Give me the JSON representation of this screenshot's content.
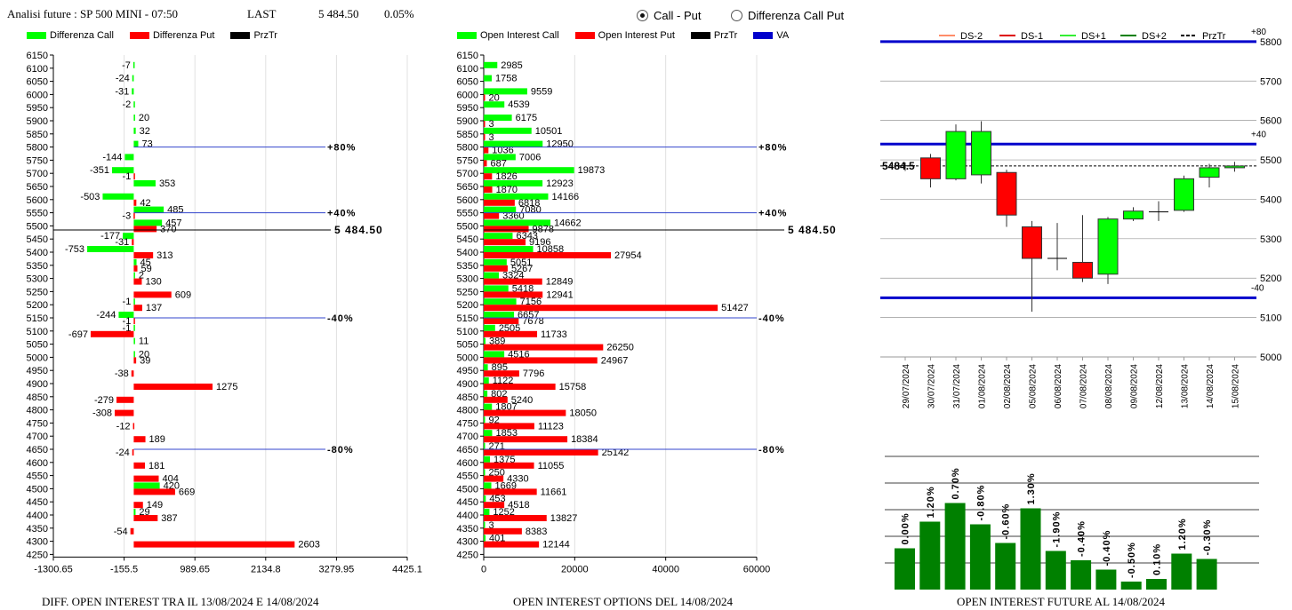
{
  "header": {
    "title": "Analisi future : SP 500 MINI - 07:50",
    "last_label": "LAST",
    "last_value": "5 484.50",
    "change": "0.05%"
  },
  "mode": {
    "options": [
      "Call - Put",
      "Differenza Call Put"
    ],
    "selected": "Call - Put"
  },
  "colors": {
    "call": "#00ff00",
    "put": "#ff0000",
    "prztr": "#000000",
    "va": "#0000cc",
    "bar": "#008000"
  },
  "legend_diff": [
    "Differenza Call",
    "Differenza Put",
    "PrzTr"
  ],
  "legend_oi": [
    "Open Interest Call",
    "Open Interest Put",
    "PrzTr",
    "VA"
  ],
  "legend_candle": [
    "DS-2",
    "DS-1",
    "DS+1",
    "DS+2",
    "PrzTr"
  ],
  "footer": {
    "diff": "DIFF. OPEN INTEREST TRA IL 13/08/2024 E 14/08/2024",
    "oi": "OPEN INTEREST OPTIONS DEL 14/08/2024",
    "fut": "OPEN INTEREST FUTURE AL 14/08/2024"
  },
  "chart_data": [
    {
      "type": "bar",
      "orientation": "horizontal",
      "strikes": [
        6150,
        6100,
        6050,
        6000,
        5950,
        5900,
        5850,
        5800,
        5750,
        5700,
        5650,
        5600,
        5550,
        5500,
        5450,
        5400,
        5350,
        5300,
        5250,
        5200,
        5150,
        5100,
        5050,
        5000,
        4950,
        4900,
        4850,
        4800,
        4750,
        4700,
        4650,
        4600,
        4550,
        4500,
        4450,
        4400,
        4350,
        4300,
        4250
      ],
      "series": [
        {
          "name": "Differenza Call",
          "values": [
            null,
            -7,
            -24,
            -31,
            -2,
            20,
            32,
            73,
            -144,
            -351,
            353,
            -503,
            485,
            457,
            -177,
            -753,
            45,
            2,
            null,
            -1,
            -244,
            -1,
            11,
            20,
            null,
            null,
            null,
            null,
            null,
            null,
            null,
            null,
            null,
            420,
            null,
            29,
            null,
            null,
            null
          ]
        },
        {
          "name": "Differenza Put",
          "values": [
            null,
            null,
            null,
            null,
            null,
            null,
            null,
            null,
            null,
            -1,
            null,
            42,
            -3,
            370,
            -31,
            313,
            59,
            130,
            609,
            137,
            -1,
            -697,
            null,
            39,
            -38,
            1275,
            -279,
            -308,
            -12,
            189,
            -24,
            181,
            404,
            669,
            149,
            387,
            -54,
            2603,
            null
          ]
        }
      ],
      "hlines": [
        {
          "strike": 5800,
          "label": "+80%"
        },
        {
          "strike": 5550,
          "label": "+40%"
        },
        {
          "strike": 5484.5,
          "label": "5 484.50",
          "prztr": true
        },
        {
          "strike": 5150,
          "label": "-40%"
        },
        {
          "strike": 4650,
          "label": "-80%"
        }
      ],
      "xlim": [
        -1300.65,
        4425.1
      ],
      "xticks": [
        "-1300.65",
        "-155.5",
        "989.65",
        "2134.8",
        "3279.95",
        "4425.1"
      ],
      "xlabel": "DIFF. OPEN INTEREST TRA IL 13/08/2024 E 14/08/2024"
    },
    {
      "type": "bar",
      "orientation": "horizontal",
      "strikes": [
        6150,
        6100,
        6050,
        6000,
        5950,
        5900,
        5850,
        5800,
        5750,
        5700,
        5650,
        5600,
        5550,
        5500,
        5450,
        5400,
        5350,
        5300,
        5250,
        5200,
        5150,
        5100,
        5050,
        5000,
        4950,
        4900,
        4850,
        4800,
        4750,
        4700,
        4650,
        4600,
        4550,
        4500,
        4450,
        4400,
        4350,
        4300,
        4250
      ],
      "series": [
        {
          "name": "Open Interest Call",
          "values": [
            null,
            2985,
            1758,
            9559,
            4539,
            6175,
            10501,
            12950,
            7006,
            19873,
            12923,
            14166,
            7080,
            14662,
            6343,
            10858,
            5051,
            3324,
            5418,
            7156,
            6657,
            2505,
            389,
            4516,
            895,
            1122,
            802,
            1807,
            92,
            1853,
            271,
            1375,
            250,
            1669,
            453,
            1252,
            3,
            401,
            null
          ]
        },
        {
          "name": "Open Interest Put",
          "values": [
            null,
            null,
            null,
            20,
            null,
            3,
            3,
            1036,
            687,
            1826,
            1870,
            6818,
            3360,
            9878,
            9196,
            27954,
            5267,
            12849,
            12941,
            51427,
            7678,
            11733,
            26250,
            24967,
            7796,
            15758,
            5240,
            18050,
            11123,
            18384,
            25142,
            11055,
            4330,
            11661,
            4518,
            13827,
            8383,
            12144,
            null
          ]
        }
      ],
      "hlines": [
        {
          "strike": 5800,
          "label": "+80%"
        },
        {
          "strike": 5550,
          "label": "+40%"
        },
        {
          "strike": 5484.5,
          "label": "5 484.50",
          "prztr": true
        },
        {
          "strike": 5150,
          "label": "-40%"
        },
        {
          "strike": 4650,
          "label": "-80%"
        }
      ],
      "xlim": [
        0,
        60000
      ],
      "xticks": [
        "0",
        "20000",
        "40000",
        "60000"
      ],
      "xlabel": "OPEN INTEREST OPTIONS DEL 14/08/2024"
    },
    {
      "type": "candlestick",
      "dates": [
        "29/07/2024",
        "30/07/2024",
        "31/07/2024",
        "01/08/2024",
        "02/08/2024",
        "05/08/2024",
        "06/08/2024",
        "07/08/2024",
        "08/08/2024",
        "09/08/2024",
        "12/08/2024",
        "13/08/2024",
        "14/08/2024",
        "15/08/2024"
      ],
      "ohlc": [
        [
          5485,
          5493,
          5472,
          5485
        ],
        [
          5505,
          5515,
          5430,
          5452
        ],
        [
          5452,
          5590,
          5448,
          5572
        ],
        [
          5462,
          5598,
          5440,
          5572
        ],
        [
          5468,
          5475,
          5330,
          5360
        ],
        [
          5330,
          5345,
          5115,
          5250
        ],
        [
          5250,
          5340,
          5220,
          5250
        ],
        [
          5240,
          5360,
          5190,
          5200
        ],
        [
          5210,
          5355,
          5185,
          5350
        ],
        [
          5350,
          5380,
          5345,
          5370
        ],
        [
          5368,
          5395,
          5345,
          5368
        ],
        [
          5372,
          5460,
          5368,
          5452
        ],
        [
          5456,
          5490,
          5430,
          5480
        ],
        [
          5480,
          5495,
          5470,
          5484.5
        ]
      ],
      "ylim": [
        5000,
        5820
      ],
      "yticks": [
        5000,
        5100,
        5200,
        5300,
        5400,
        5500,
        5600,
        5700,
        5800
      ],
      "levels": [
        {
          "value": 5800,
          "label": "+80"
        },
        {
          "value": 5540,
          "label": "+40"
        },
        {
          "value": 5150,
          "label": "-40"
        }
      ],
      "prztr": 5484.5,
      "prztr_label": "5484.5",
      "legend": [
        "DS-2",
        "DS-1",
        "DS+1",
        "DS+2",
        "PrzTr"
      ]
    },
    {
      "type": "bar",
      "labels": [
        "0.00%",
        "1.20%",
        "0.70%",
        "-0.80%",
        "-0.60%",
        "1.30%",
        "-1.90%",
        "-0.40%",
        "-0.40%",
        "-0.50%",
        "0.10%",
        "1.20%",
        "-0.30%"
      ],
      "values": [
        1.55,
        2.55,
        3.25,
        2.45,
        1.75,
        3.05,
        1.45,
        1.1,
        0.75,
        0.3,
        0.4,
        1.35,
        1.15
      ],
      "title": "OPEN INTEREST FUTURE AL 14/08/2024"
    }
  ]
}
